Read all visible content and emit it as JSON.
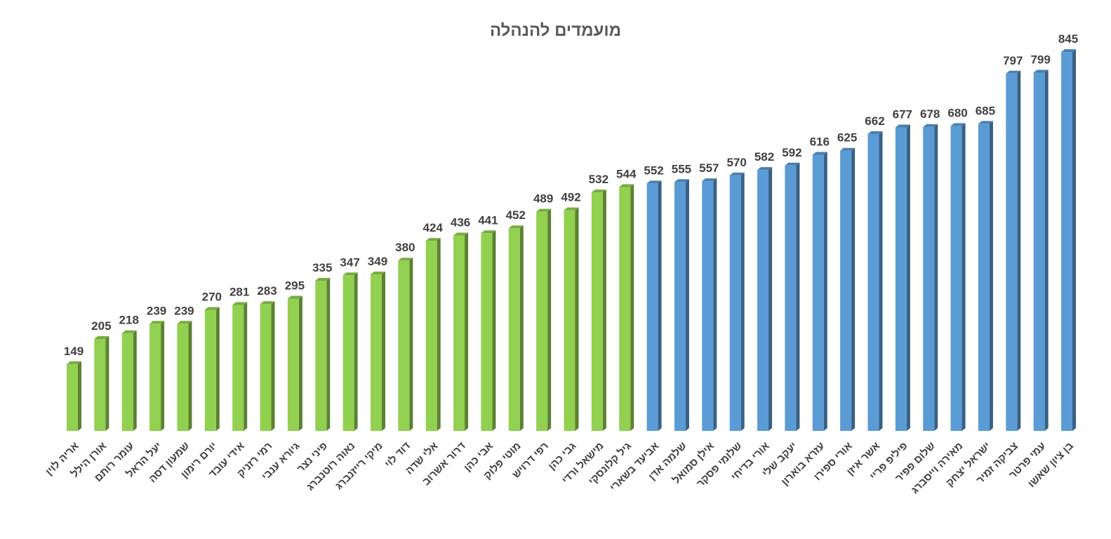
{
  "chart_data": {
    "type": "bar",
    "title": "מועמדים להנהלה",
    "xlabel": "",
    "ylabel": "",
    "ylim": [
      0,
      900
    ],
    "grid": false,
    "legend": "none",
    "colors": {
      "green": "#92d050",
      "blue": "#5b9bd5"
    },
    "categories": [
      "אריה לוין",
      "אורן הילל",
      "עומר רותם",
      "יעל הראל",
      "שמעון דסה",
      "יורם רימון",
      "אידי עובד",
      "רמי רזניק",
      "גיורא ענבי",
      "פיני נצר",
      "נאוה רוטנברג",
      "מיקי רייזנברג",
      "דוד לוי",
      "אלי שדה",
      "דרור אשרוב",
      "אבי כהן",
      "מוטי פלוק",
      "רפי דרויש",
      "גבי כהן",
      "מישאל ורדי",
      "גיל קלונסקי",
      "אביעד בשארי",
      "שלמה אדן",
      "אילן סמואל",
      "שלומי פסקר",
      "אורי בדיחי",
      "יעקב שלי",
      "עזרא בוארון",
      "אורי ספירו",
      "אשר איזן",
      "פיליפ פריי",
      "שלום פפיר",
      "מאירה וייסברג",
      "ישראל יצחק",
      "צביקה זמיר",
      "עמי פרטר",
      "בן ציון שאשו"
    ],
    "values": [
      149,
      205,
      218,
      239,
      239,
      270,
      281,
      283,
      295,
      335,
      347,
      349,
      380,
      424,
      436,
      441,
      452,
      489,
      492,
      532,
      544,
      552,
      555,
      557,
      570,
      582,
      592,
      616,
      625,
      662,
      677,
      678,
      680,
      685,
      797,
      799,
      845
    ],
    "bar_colors": [
      "green",
      "green",
      "green",
      "green",
      "green",
      "green",
      "green",
      "green",
      "green",
      "green",
      "green",
      "green",
      "green",
      "green",
      "green",
      "green",
      "green",
      "green",
      "green",
      "green",
      "green",
      "blue",
      "blue",
      "blue",
      "blue",
      "blue",
      "blue",
      "blue",
      "blue",
      "blue",
      "blue",
      "blue",
      "blue",
      "blue",
      "blue",
      "blue",
      "blue"
    ]
  }
}
